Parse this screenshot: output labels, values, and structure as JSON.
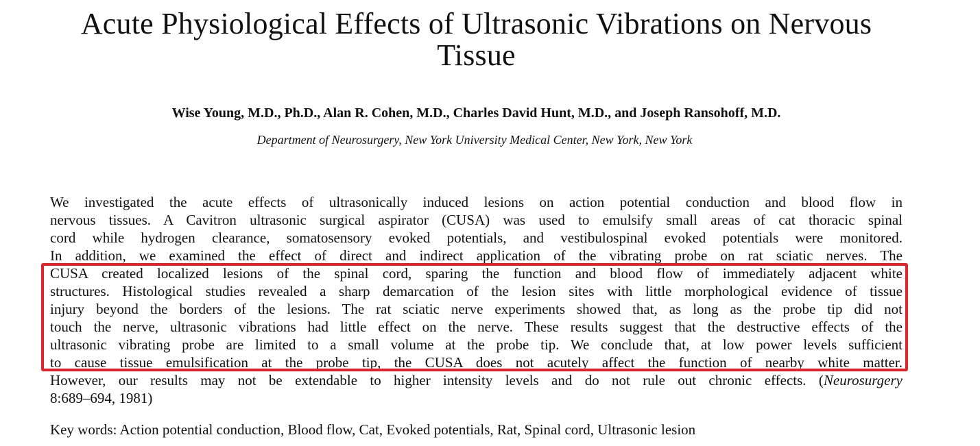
{
  "paper": {
    "title_line1": "Acute Physiological Effects of Ultrasonic Vibrations on Nervous",
    "title_line2": "Tissue",
    "authors": "Wise Young, M.D., Ph.D., Alan R. Cohen, M.D., Charles David Hunt, M.D., and Joseph Ransohoff, M.D.",
    "affiliation": "Department of Neurosurgery, New York University Medical Center, New York, New York",
    "abstract_lines": [
      "We investigated the acute effects of ultrasonically induced lesions on action potential conduction and blood flow in",
      "nervous tissues. A Cavitron ultrasonic surgical aspirator (CUSA) was used to emulsify small areas of cat thoracic spinal",
      "cord while hydrogen clearance, somatosensory evoked potentials, and vestibulospinal evoked potentials were monitored.",
      "In addition, we examined the effect of direct and indirect application of the vibrating probe on rat sciatic nerves. The",
      "CUSA created localized lesions of the spinal cord, sparing the function and blood flow of immediately adjacent white",
      "structures. Histological studies revealed a sharp demarcation of the lesion sites with little morphological evidence of tissue",
      "injury beyond the borders of the lesions. The rat sciatic nerve experiments showed that, as long as the probe tip did not",
      "touch the nerve, ultrasonic vibrations had little effect on the nerve. These results suggest that the destructive effects of the",
      "ultrasonic vibrating probe are limited to a small volume at the probe tip. We conclude that, at low power levels sufficient",
      "to cause tissue emulsification at the probe tip, the CUSA does not acutely affect the function of nearby white matter.",
      "However, our results may not be extendable to higher intensity levels and do not rule out chronic effects. ("
    ],
    "citation_journal": "Neurosurgery",
    "citation_rest": "8:689–694, 1981)",
    "keywords": "Key words: Action potential conduction, Blood flow, Cat, Evoked potentials, Rat, Spinal cord, Ultrasonic lesion"
  },
  "highlight": {
    "color": "#e8202a"
  }
}
